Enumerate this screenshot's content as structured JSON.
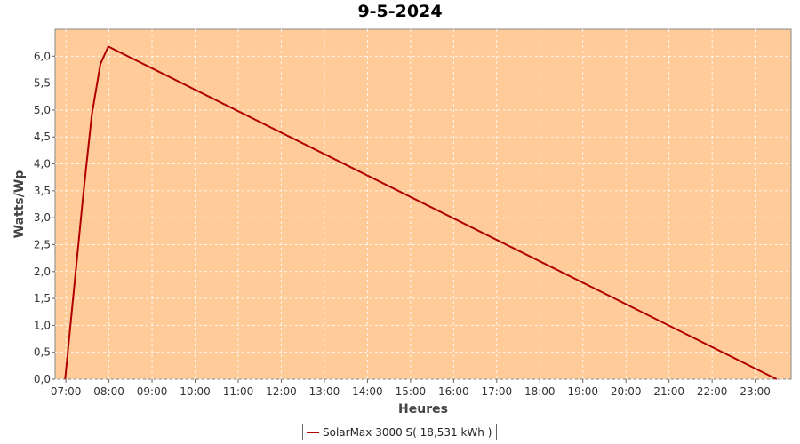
{
  "chart_data": {
    "type": "line",
    "title": "9-5-2024",
    "xlabel": "Heures",
    "ylabel": "Watts/Wp",
    "xlim": [
      "06:45",
      "23:50"
    ],
    "ylim": [
      0,
      6.5
    ],
    "x_ticks": [
      "07:00",
      "08:00",
      "09:00",
      "10:00",
      "11:00",
      "12:00",
      "13:00",
      "14:00",
      "15:00",
      "16:00",
      "17:00",
      "18:00",
      "19:00",
      "20:00",
      "21:00",
      "22:00",
      "23:00"
    ],
    "y_ticks": [
      "0,0",
      "0,5",
      "1,0",
      "1,5",
      "2,0",
      "2,5",
      "3,0",
      "3,5",
      "4,0",
      "4,5",
      "5,0",
      "5,5",
      "6,0"
    ],
    "grid": true,
    "legend_position": "bottom-center",
    "series": [
      {
        "name": "SolarMax 3000 S( 18,531 kWh )",
        "color": "#b00000",
        "points": [
          {
            "x": "06:59",
            "y": 0.0
          },
          {
            "x": "07:24",
            "y": 3.4
          },
          {
            "x": "07:36",
            "y": 4.9
          },
          {
            "x": "07:48",
            "y": 5.85
          },
          {
            "x": "07:59",
            "y": 6.18
          },
          {
            "x": "23:30",
            "y": 0.0
          }
        ]
      }
    ],
    "plot_background": "#ffcc99"
  }
}
